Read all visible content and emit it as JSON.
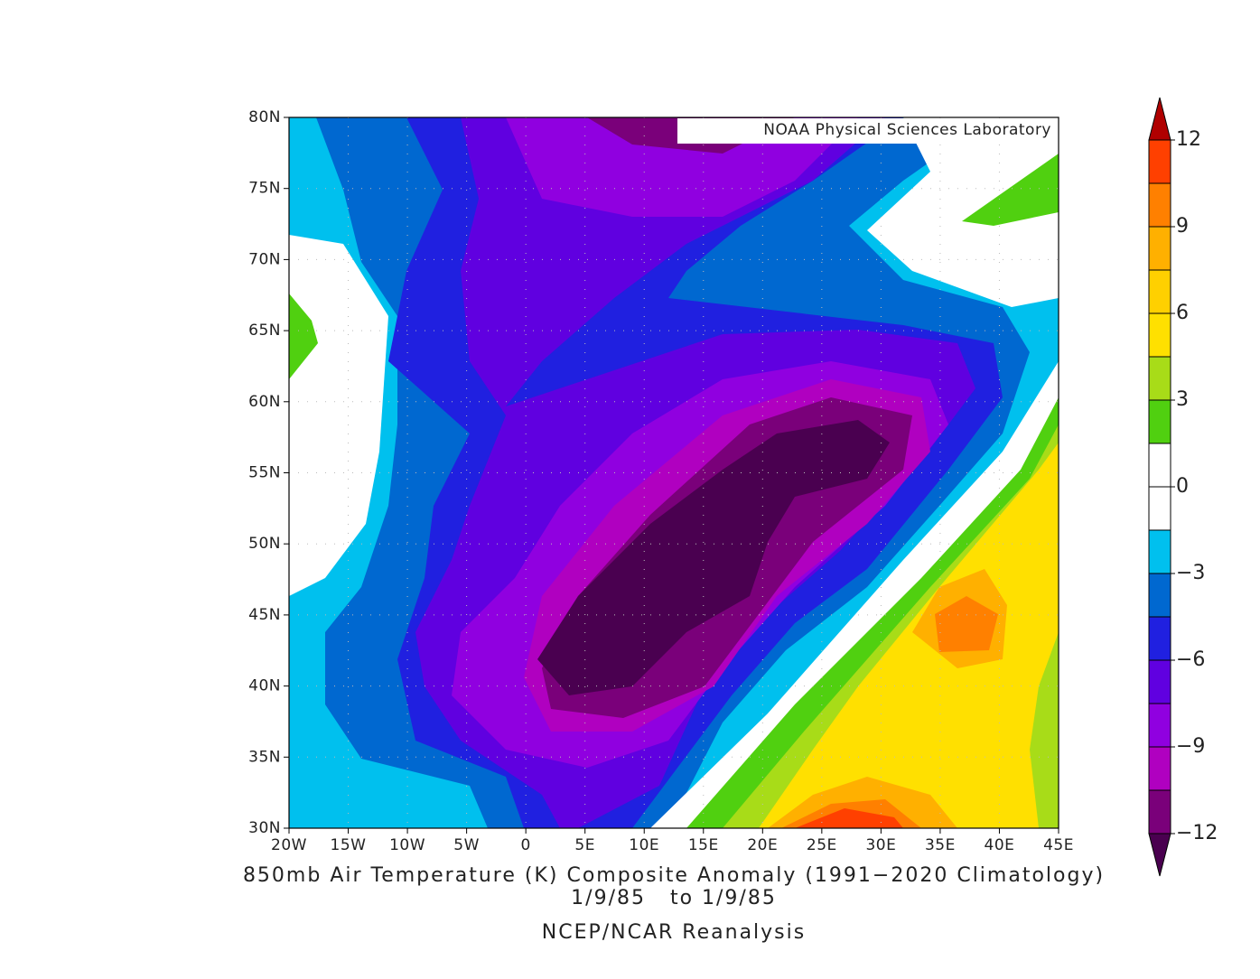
{
  "map": {
    "credit": "NOAA Physical Sciences Laboratory",
    "title": "850mb Air Temperature (K) Composite Anomaly (1991−2020 Climatology)",
    "date_range": "1/9/85   to 1/9/85",
    "source": "NCEP/NCAR Reanalysis",
    "xlim": [
      -20,
      45
    ],
    "ylim": [
      30,
      80
    ],
    "grid": true,
    "xticks": [
      {
        "value": -20,
        "label": "20W"
      },
      {
        "value": -15,
        "label": "15W"
      },
      {
        "value": -10,
        "label": "10W"
      },
      {
        "value": -5,
        "label": "5W"
      },
      0,
      {
        "value": 5,
        "label": "5E"
      },
      {
        "value": 10,
        "label": "10E"
      },
      {
        "value": 15,
        "label": "15E"
      },
      {
        "value": 20,
        "label": "20E"
      },
      {
        "value": 25,
        "label": "25E"
      },
      {
        "value": 30,
        "label": "30E"
      },
      {
        "value": 35,
        "label": "35E"
      },
      {
        "value": 40,
        "label": "40E"
      },
      {
        "value": 45,
        "label": "45E"
      }
    ],
    "yticks": [
      {
        "value": 30,
        "label": "30N"
      },
      {
        "value": 35,
        "label": "35N"
      },
      {
        "value": 40,
        "label": "40N"
      },
      {
        "value": 45,
        "label": "45N"
      },
      {
        "value": 50,
        "label": "50N"
      },
      {
        "value": 55,
        "label": "55N"
      },
      {
        "value": 60,
        "label": "60N"
      },
      {
        "value": 65,
        "label": "65N"
      },
      {
        "value": 70,
        "label": "70N"
      },
      {
        "value": 75,
        "label": "75N"
      },
      {
        "value": 80,
        "label": "80N"
      }
    ],
    "colorbar": {
      "levels": [
        -12,
        -10.5,
        -9,
        -7.5,
        -6,
        -4.5,
        -3,
        -1.5,
        0,
        1.5,
        3,
        4.5,
        6,
        7.5,
        9,
        10.5,
        12
      ],
      "colors": [
        "#4a0050",
        "#7a007a",
        "#b000c0",
        "#9000e0",
        "#6000e0",
        "#2020e0",
        "#0068d0",
        "#00c0ee",
        "#ffffff",
        "#ffffff",
        "#50d010",
        "#a8dc18",
        "#ffe000",
        "#ffd000",
        "#ffb000",
        "#ff8000",
        "#ff4000",
        "#b00000"
      ],
      "ticks": [
        {
          "value": -12,
          "label": "−12"
        },
        {
          "value": -9,
          "label": "−9"
        },
        {
          "value": -6,
          "label": "−6"
        },
        {
          "value": -3,
          "label": "−3"
        },
        0,
        3,
        6,
        9,
        12
      ]
    }
  }
}
